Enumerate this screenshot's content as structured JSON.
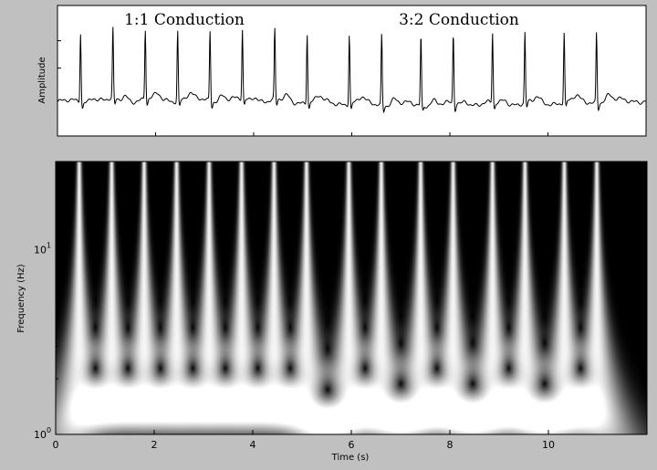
{
  "chart_data": [
    {
      "type": "line",
      "title": "",
      "xlabel": "",
      "ylabel": "Amplitude",
      "xlim": [
        0,
        12
      ],
      "annotations": [
        {
          "text": "1:1 Conduction",
          "x": 2.5
        },
        {
          "text": "3:2 Conduction",
          "x": 8.3
        }
      ],
      "beat_times": [
        0.47,
        1.13,
        1.79,
        2.45,
        3.11,
        3.77,
        4.43,
        5.09,
        5.95,
        6.61,
        7.41,
        8.07,
        8.87,
        9.53,
        10.33,
        10.99
      ],
      "baseline": 0.15,
      "beat_peak": 1.0
    },
    {
      "type": "heatmap",
      "title": "",
      "xlabel": "Time (s)",
      "ylabel": "Frequency (Hz)",
      "xlim": [
        0,
        12
      ],
      "ylim": [
        1,
        30
      ],
      "yscale": "log",
      "x_ticks": [
        {
          "value": 0,
          "label": "0"
        },
        {
          "value": 2,
          "label": "2"
        },
        {
          "value": 4,
          "label": "4"
        },
        {
          "value": 6,
          "label": "6"
        },
        {
          "value": 8,
          "label": "8"
        },
        {
          "value": 10,
          "label": "10"
        }
      ],
      "y_ticks": [
        {
          "value": 1,
          "base": "10",
          "exp": "0"
        },
        {
          "value": 10,
          "base": "10",
          "exp": "1"
        }
      ],
      "colormap": "gray"
    }
  ]
}
